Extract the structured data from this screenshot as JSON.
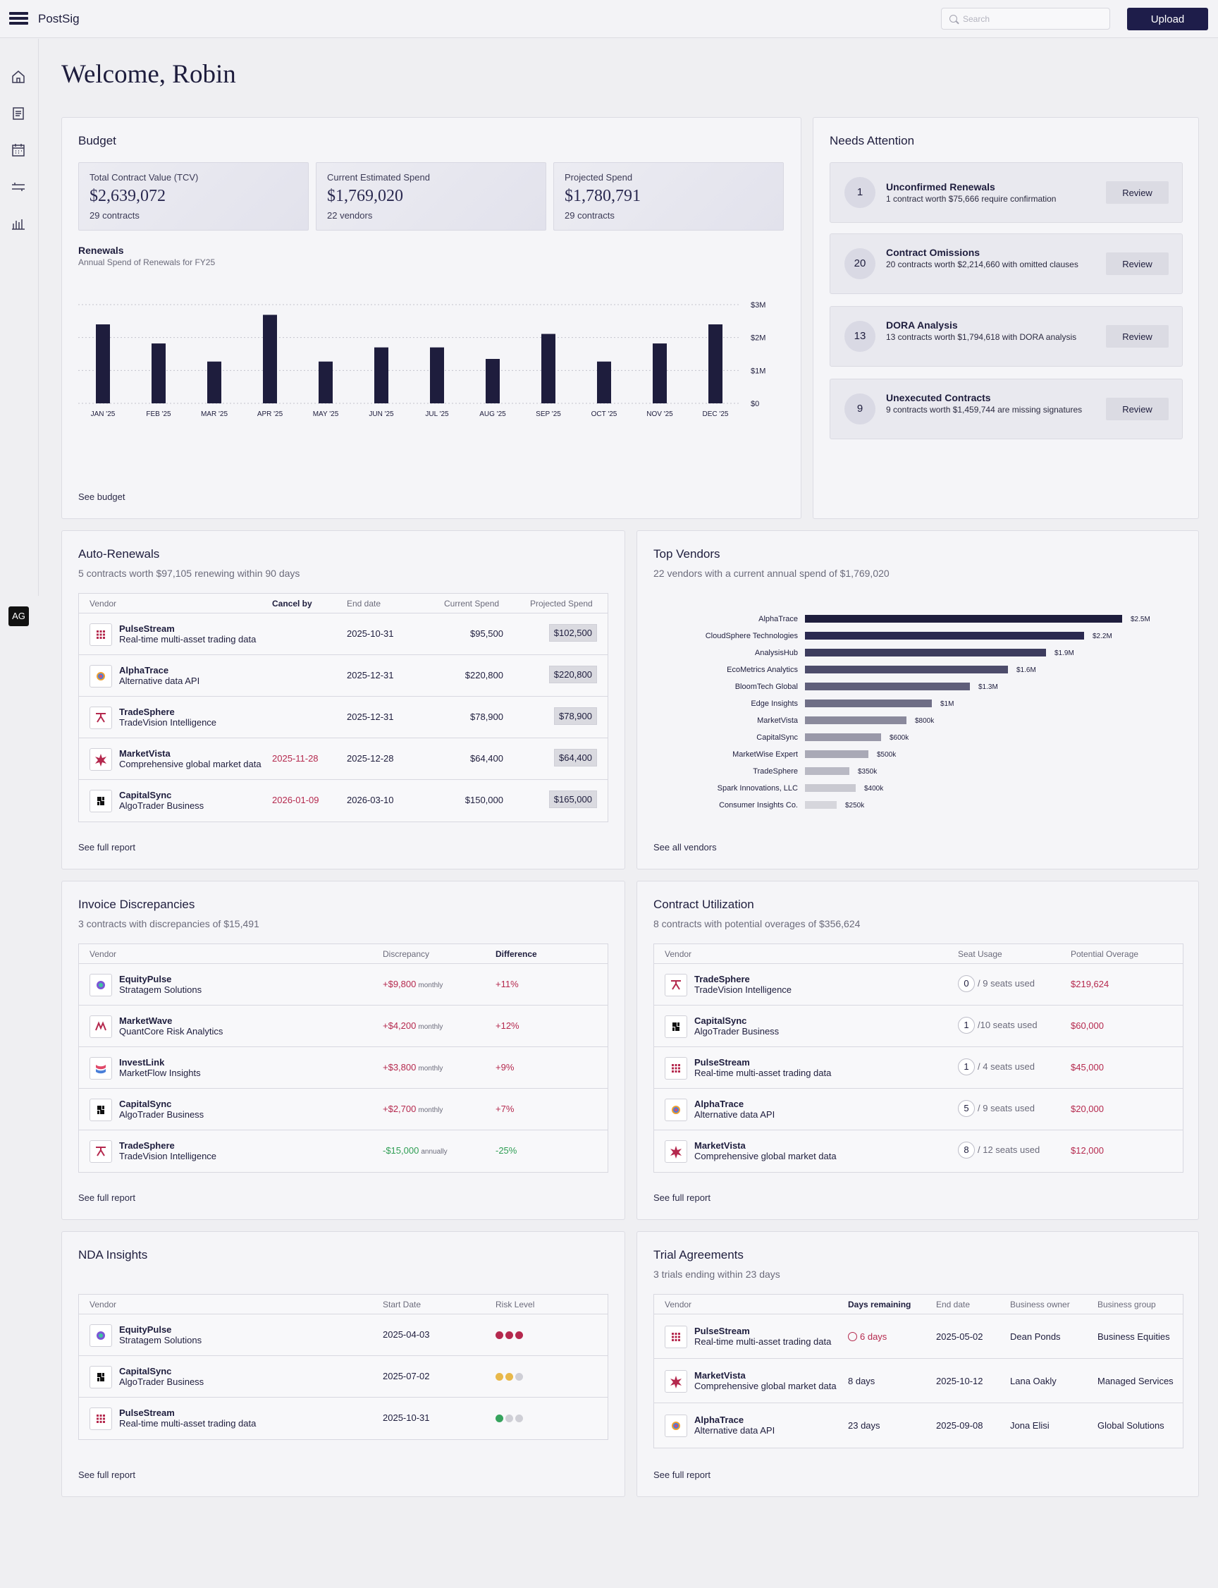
{
  "app": {
    "brand": "PostSig",
    "search_placeholder": "Search",
    "upload_label": "Upload",
    "avatar": "AG"
  },
  "welcome": "Welcome, Robin",
  "budget": {
    "title": "Budget",
    "stats": [
      {
        "label": "Total Contract Value (TCV)",
        "value": "$2,639,072",
        "count": "29 contracts"
      },
      {
        "label": "Current Estimated Spend",
        "value": "$1,769,020",
        "count": "22 vendors"
      },
      {
        "label": "Projected Spend",
        "value": "$1,780,791",
        "count": "29 contracts"
      }
    ],
    "renewals_title": "Renewals",
    "renewals_sub": "Annual Spend of Renewals for FY25",
    "link": "See budget"
  },
  "attention": {
    "title": "Needs Attention",
    "review_label": "Review",
    "items": [
      {
        "num": "1",
        "title": "Unconfirmed Renewals",
        "desc": "1 contract worth $75,666 require confirmation"
      },
      {
        "num": "20",
        "title": "Contract Omissions",
        "desc": "20 contracts worth $2,214,660 with omitted clauses"
      },
      {
        "num": "13",
        "title": "DORA Analysis",
        "desc": "13 contracts worth $1,794,618 with DORA analysis"
      },
      {
        "num": "9",
        "title": "Unexecuted Contracts",
        "desc": "9 contracts worth $1,459,744 are missing signatures"
      }
    ]
  },
  "chart_data": [
    {
      "type": "bar",
      "title": "Renewals",
      "subtitle": "Annual Spend of Renewals for FY25",
      "categories": [
        "JAN '25",
        "FEB '25",
        "MAR '25",
        "APR '25",
        "MAY '25",
        "JUN '25",
        "JUL '25",
        "AUG '25",
        "SEP '25",
        "OCT '25",
        "NOV '25",
        "DEC '25"
      ],
      "values": [
        2400000,
        1820000,
        1270000,
        2690000,
        1270000,
        1700000,
        1700000,
        1350000,
        2110000,
        1270000,
        1820000,
        2400000
      ],
      "yticks": [
        "$0",
        "$1M",
        "$2M",
        "$3M"
      ],
      "ylim": [
        0,
        3000000
      ],
      "grid": true,
      "color": "#1e1d3d"
    },
    {
      "type": "bar",
      "orientation": "horizontal",
      "categories": [
        "AlphaTrace",
        "CloudSphere Technologies",
        "AnalysisHub",
        "EcoMetrics Analytics",
        "BloomTech Global",
        "Edge Insights",
        "MarketVista",
        "CapitalSync",
        "MarketWise Expert",
        "TradeSphere",
        "Spark Innovations, LLC",
        "Consumer Insights Co."
      ],
      "values": [
        2500000,
        2200000,
        1900000,
        1600000,
        1300000,
        1000000,
        800000,
        600000,
        500000,
        350000,
        400000,
        250000
      ],
      "labels": [
        "$2.5M",
        "$2.2M",
        "$1.9M",
        "$1.6M",
        "$1.3M",
        "$1M",
        "$800k",
        "$600k",
        "$500k",
        "$350k",
        "$400k",
        "$250k"
      ],
      "colors": [
        "#1e1d3d",
        "#2a2950",
        "#3d3c5e",
        "#4d4c6b",
        "#5f5e7a",
        "#6f6e86",
        "#8a899c",
        "#9998a9",
        "#a9a9b6",
        "#b9b9c4",
        "#c9c9d1",
        "#d6d6dc"
      ]
    }
  ],
  "auto_renewals": {
    "title": "Auto-Renewals",
    "sub": "5 contracts worth $97,105 renewing within 90 days",
    "headers": [
      "Vendor",
      "Cancel by",
      "End date",
      "Current Spend",
      "Projected Spend"
    ],
    "rows": [
      {
        "name": "PulseStream",
        "desc": "Real-time multi-asset trading data",
        "cancel": "",
        "end": "2025-10-31",
        "current": "$95,500",
        "projected": "$102,500"
      },
      {
        "name": "AlphaTrace",
        "desc": "Alternative data API",
        "cancel": "",
        "end": "2025-12-31",
        "current": "$220,800",
        "projected": "$220,800"
      },
      {
        "name": "TradeSphere",
        "desc": "TradeVision Intelligence",
        "cancel": "",
        "end": "2025-12-31",
        "current": "$78,900",
        "projected": "$78,900"
      },
      {
        "name": "MarketVista",
        "desc": "Comprehensive global market data",
        "cancel": "2025-11-28",
        "end": "2025-12-28",
        "current": "$64,400",
        "projected": "$64,400"
      },
      {
        "name": "CapitalSync",
        "desc": "AlgoTrader Business",
        "cancel": "2026-01-09",
        "end": "2026-03-10",
        "current": "$150,000",
        "projected": "$165,000"
      }
    ],
    "link": "See full report"
  },
  "top_vendors": {
    "title": "Top Vendors",
    "sub": "22 vendors with a current annual spend of $1,769,020",
    "link": "See all vendors"
  },
  "invoice": {
    "title": "Invoice Discrepancies",
    "sub": "3 contracts with discrepancies of $15,491",
    "headers": [
      "Vendor",
      "Discrepancy",
      "Difference"
    ],
    "rows": [
      {
        "name": "EquityPulse",
        "desc": "Stratagem Solutions",
        "amount": "+$9,800",
        "period": "monthly",
        "diff": "+11%"
      },
      {
        "name": "MarketWave",
        "desc": "QuantCore Risk Analytics",
        "amount": "+$4,200",
        "period": "monthly",
        "diff": "+12%"
      },
      {
        "name": "InvestLink",
        "desc": "MarketFlow Insights",
        "amount": "+$3,800",
        "period": "monthly",
        "diff": "+9%"
      },
      {
        "name": "CapitalSync",
        "desc": "AlgoTrader Business",
        "amount": "+$2,700",
        "period": "monthly",
        "diff": "+7%"
      },
      {
        "name": "TradeSphere",
        "desc": "TradeVision Intelligence",
        "amount": "-$15,000",
        "period": "annually",
        "diff": "-25%"
      }
    ],
    "link": "See full report"
  },
  "utilization": {
    "title": "Contract Utilization",
    "sub": "8 contracts with potential overages of $356,624",
    "headers": [
      "Vendor",
      "Seat Usage",
      "Potential Overage"
    ],
    "rows": [
      {
        "name": "TradeSphere",
        "desc": "TradeVision Intelligence",
        "used": "0",
        "seats": "/ 9 seats used",
        "overage": "$219,624"
      },
      {
        "name": "CapitalSync",
        "desc": "AlgoTrader Business",
        "used": "1",
        "seats": "/10 seats used",
        "overage": "$60,000"
      },
      {
        "name": "PulseStream",
        "desc": "Real-time multi-asset trading data",
        "used": "1",
        "seats": "/ 4 seats used",
        "overage": "$45,000"
      },
      {
        "name": "AlphaTrace",
        "desc": "Alternative data API",
        "used": "5",
        "seats": "/ 9 seats used",
        "overage": "$20,000"
      },
      {
        "name": "MarketVista",
        "desc": "Comprehensive global market data",
        "used": "8",
        "seats": "/ 12 seats used",
        "overage": "$12,000"
      }
    ],
    "link": "See full report"
  },
  "nda": {
    "title": "NDA Insights",
    "headers": [
      "Vendor",
      "Start Date",
      "Risk Level"
    ],
    "rows": [
      {
        "name": "EquityPulse",
        "desc": "Stratagem Solutions",
        "start": "2025-04-03",
        "dots": [
          "#b5294e",
          "#b5294e",
          "#b5294e"
        ]
      },
      {
        "name": "CapitalSync",
        "desc": "AlgoTrader Business",
        "start": "2025-07-02",
        "dots": [
          "#e8b84a",
          "#e8b84a",
          "#cfcfd6"
        ]
      },
      {
        "name": "PulseStream",
        "desc": "Real-time multi-asset trading data",
        "start": "2025-10-31",
        "dots": [
          "#36a35d",
          "#cfcfd6",
          "#cfcfd6"
        ]
      }
    ],
    "link": "See full report"
  },
  "trials": {
    "title": "Trial Agreements",
    "sub": "3 trials ending within 23 days",
    "headers": [
      "Vendor",
      "Days remaining",
      "End date",
      "Business owner",
      "Business group"
    ],
    "rows": [
      {
        "name": "PulseStream",
        "desc": "Real-time multi-asset trading data",
        "days": "6 days",
        "end": "2025-05-02",
        "owner": "Dean Ponds",
        "group": "Business Equities"
      },
      {
        "name": "MarketVista",
        "desc": "Comprehensive global market data",
        "days": "8 days",
        "end": "2025-10-12",
        "owner": "Lana Oakly",
        "group": "Managed Services"
      },
      {
        "name": "AlphaTrace",
        "desc": "Alternative data API",
        "days": "23 days",
        "end": "2025-09-08",
        "owner": "Jona Elisi",
        "group": "Global Solutions"
      }
    ],
    "link": "See full report"
  }
}
